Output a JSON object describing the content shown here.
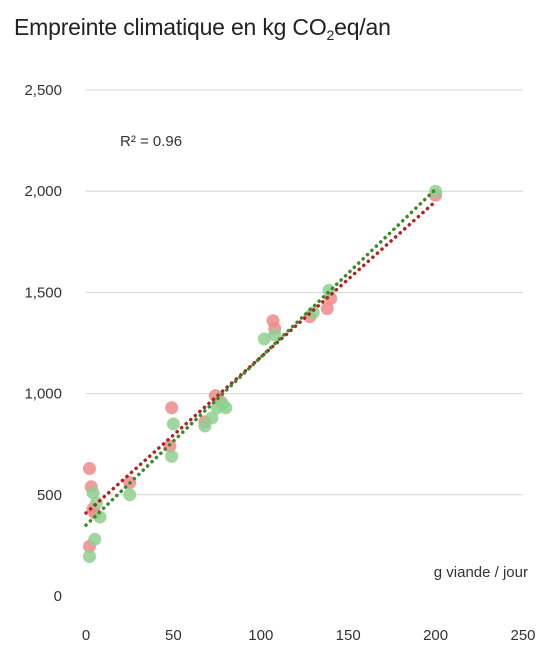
{
  "chart_data": {
    "type": "scatter",
    "title_prefix": "Empreinte climatique en kg CO",
    "title_subscript": "2",
    "title_suffix": "eq/an",
    "xlabel": "g viande / jour",
    "ylabel": "",
    "annotation": "R² = 0.96",
    "xlim": [
      0,
      250
    ],
    "ylim": [
      0,
      2500
    ],
    "xticks": [
      "0",
      "50",
      "100",
      "150",
      "200",
      "250"
    ],
    "yticks": [
      "0",
      "500",
      "1,000",
      "1,500",
      "2,000",
      "2,500"
    ],
    "grid": "horizontal",
    "series": [
      {
        "color": "#ee8a8a",
        "trend_color": "#b22222",
        "trend": [
          [
            0,
            410
          ],
          [
            200,
            1950
          ]
        ],
        "points": [
          [
            2,
            630
          ],
          [
            3,
            540
          ],
          [
            2,
            245
          ],
          [
            4,
            430
          ],
          [
            5,
            410
          ],
          [
            25,
            560
          ],
          [
            48,
            740
          ],
          [
            49,
            930
          ],
          [
            68,
            860
          ],
          [
            74,
            990
          ],
          [
            77,
            960
          ],
          [
            107,
            1360
          ],
          [
            108,
            1320
          ],
          [
            128,
            1380
          ],
          [
            138,
            1420
          ],
          [
            140,
            1470
          ],
          [
            200,
            1980
          ]
        ]
      },
      {
        "color": "#8fd08f",
        "trend_color": "#3a8a2a",
        "trend": [
          [
            0,
            350
          ],
          [
            200,
            2010
          ]
        ],
        "points": [
          [
            2,
            195
          ],
          [
            5,
            280
          ],
          [
            4,
            510
          ],
          [
            6,
            460
          ],
          [
            8,
            390
          ],
          [
            25,
            500
          ],
          [
            49,
            690
          ],
          [
            50,
            850
          ],
          [
            68,
            840
          ],
          [
            72,
            880
          ],
          [
            75,
            930
          ],
          [
            78,
            950
          ],
          [
            80,
            930
          ],
          [
            102,
            1270
          ],
          [
            108,
            1290
          ],
          [
            130,
            1400
          ],
          [
            139,
            1510
          ],
          [
            200,
            2000
          ]
        ]
      }
    ]
  }
}
